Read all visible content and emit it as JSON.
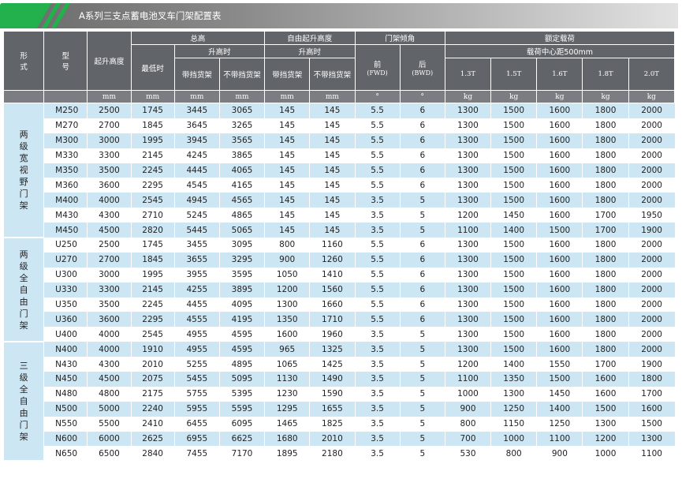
{
  "page_title": "A系列三支点蓄电池叉车门架配置表",
  "header": {
    "form": "形式",
    "model": "型号",
    "lift_height": "起升高度",
    "total_height": "总高",
    "lowest": "最低时",
    "when_lifted": "升高时",
    "with_backrest": "带挡货架",
    "without_backrest": "不带挡货架",
    "free_lift": "自由起升高度",
    "free_when_lifted": "升高时",
    "free_with_backrest": "带挡货架",
    "free_without_backrest": "不带挡货架",
    "tilt": "门架倾角",
    "front": "前",
    "front_sub": "(FWD)",
    "rear": "后",
    "rear_sub": "(BWD)",
    "rated_load": "额定载荷",
    "load_center": "载荷中心距500mm",
    "capacities": [
      "1.3T",
      "1.5T",
      "1.6T",
      "1.8T",
      "2.0T"
    ]
  },
  "units": {
    "form": "",
    "model": "",
    "lift": "mm",
    "lowest": "mm",
    "with": "mm",
    "without": "mm",
    "free_with": "mm",
    "free_without": "mm",
    "front": "°",
    "rear": "°",
    "c1": "kg",
    "c2": "kg",
    "c3": "kg",
    "c4": "kg",
    "c5": "kg"
  },
  "groups": [
    {
      "name": "两级宽视野门架",
      "rows": [
        [
          "M250",
          "2500",
          "1745",
          "3445",
          "3065",
          "145",
          "145",
          "5.5",
          "6",
          "1300",
          "1500",
          "1600",
          "1800",
          "2000"
        ],
        [
          "M270",
          "2700",
          "1845",
          "3645",
          "3265",
          "145",
          "145",
          "5.5",
          "6",
          "1300",
          "1500",
          "1600",
          "1800",
          "2000"
        ],
        [
          "M300",
          "3000",
          "1995",
          "3945",
          "3565",
          "145",
          "145",
          "5.5",
          "6",
          "1300",
          "1500",
          "1600",
          "1800",
          "2000"
        ],
        [
          "M330",
          "3300",
          "2145",
          "4245",
          "3865",
          "145",
          "145",
          "5.5",
          "6",
          "1300",
          "1500",
          "1600",
          "1800",
          "2000"
        ],
        [
          "M350",
          "3500",
          "2245",
          "4445",
          "4065",
          "145",
          "145",
          "5.5",
          "6",
          "1300",
          "1500",
          "1600",
          "1800",
          "2000"
        ],
        [
          "M360",
          "3600",
          "2295",
          "4545",
          "4165",
          "145",
          "145",
          "5.5",
          "6",
          "1300",
          "1500",
          "1600",
          "1800",
          "2000"
        ],
        [
          "M400",
          "4000",
          "2545",
          "4945",
          "4565",
          "145",
          "145",
          "3.5",
          "5",
          "1300",
          "1500",
          "1600",
          "1800",
          "2000"
        ],
        [
          "M430",
          "4300",
          "2710",
          "5245",
          "4865",
          "145",
          "145",
          "3.5",
          "5",
          "1200",
          "1450",
          "1600",
          "1700",
          "1950"
        ],
        [
          "M450",
          "4500",
          "2820",
          "5445",
          "5065",
          "145",
          "145",
          "3.5",
          "5",
          "1100",
          "1400",
          "1500",
          "1700",
          "1900"
        ]
      ]
    },
    {
      "name": "两级全自由门架",
      "rows": [
        [
          "U250",
          "2500",
          "1745",
          "3455",
          "3095",
          "800",
          "1160",
          "5.5",
          "6",
          "1300",
          "1500",
          "1600",
          "1800",
          "2000"
        ],
        [
          "U270",
          "2700",
          "1845",
          "3655",
          "3295",
          "900",
          "1260",
          "5.5",
          "6",
          "1300",
          "1500",
          "1600",
          "1800",
          "2000"
        ],
        [
          "U300",
          "3000",
          "1995",
          "3955",
          "3595",
          "1050",
          "1410",
          "5.5",
          "6",
          "1300",
          "1500",
          "1600",
          "1800",
          "2000"
        ],
        [
          "U330",
          "3300",
          "2145",
          "4255",
          "3895",
          "1200",
          "1560",
          "5.5",
          "6",
          "1300",
          "1500",
          "1600",
          "1800",
          "2000"
        ],
        [
          "U350",
          "3500",
          "2245",
          "4455",
          "4095",
          "1300",
          "1660",
          "5.5",
          "6",
          "1300",
          "1500",
          "1600",
          "1800",
          "2000"
        ],
        [
          "U360",
          "3600",
          "2295",
          "4555",
          "4195",
          "1350",
          "1710",
          "5.5",
          "6",
          "1300",
          "1500",
          "1600",
          "1800",
          "2000"
        ],
        [
          "U400",
          "4000",
          "2545",
          "4955",
          "4595",
          "1600",
          "1960",
          "3.5",
          "5",
          "1300",
          "1500",
          "1600",
          "1800",
          "2000"
        ]
      ]
    },
    {
      "name": "三级全自由门架",
      "rows": [
        [
          "N400",
          "4000",
          "1910",
          "4955",
          "4595",
          "965",
          "1325",
          "3.5",
          "5",
          "1300",
          "1500",
          "1600",
          "1800",
          "2000"
        ],
        [
          "N430",
          "4300",
          "2010",
          "5255",
          "4895",
          "1065",
          "1425",
          "3.5",
          "5",
          "1200",
          "1400",
          "1550",
          "1700",
          "1900"
        ],
        [
          "N450",
          "4500",
          "2075",
          "5455",
          "5095",
          "1130",
          "1490",
          "3.5",
          "5",
          "1100",
          "1350",
          "1500",
          "1600",
          "1800"
        ],
        [
          "N480",
          "4800",
          "2175",
          "5755",
          "5395",
          "1230",
          "1590",
          "3.5",
          "5",
          "1000",
          "1300",
          "1450",
          "1600",
          "1700"
        ],
        [
          "N500",
          "5000",
          "2240",
          "5955",
          "5595",
          "1295",
          "1655",
          "3.5",
          "5",
          "900",
          "1250",
          "1400",
          "1500",
          "1600"
        ],
        [
          "N550",
          "5500",
          "2410",
          "6455",
          "6095",
          "1465",
          "1825",
          "3.5",
          "5",
          "800",
          "1150",
          "1250",
          "1300",
          "1500"
        ],
        [
          "N600",
          "6000",
          "2625",
          "6955",
          "6625",
          "1680",
          "2010",
          "3.5",
          "5",
          "700",
          "1000",
          "1100",
          "1200",
          "1300"
        ],
        [
          "N650",
          "6500",
          "2840",
          "7455",
          "7170",
          "1895",
          "2180",
          "3.5",
          "5",
          "530",
          "800",
          "900",
          "1000",
          "1100"
        ]
      ]
    }
  ],
  "colors": {
    "header_bg": "#616469",
    "band": "#cde6f3",
    "accent": "#22b14c"
  }
}
